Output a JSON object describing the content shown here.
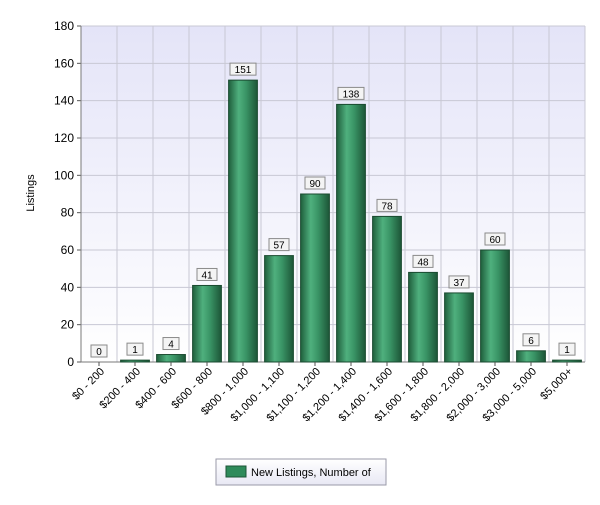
{
  "chart_data": {
    "type": "bar",
    "title": "",
    "xlabel": "",
    "ylabel": "Listings",
    "ylim": [
      0,
      180
    ],
    "yticks": [
      0,
      20,
      40,
      60,
      80,
      100,
      120,
      140,
      160,
      180
    ],
    "grid": true,
    "legend_position": "bottom-center",
    "categories": [
      "$0 - 200",
      "$200 - 400",
      "$400 - 600",
      "$600 - 800",
      "$800 - 1,000",
      "$1,000 - 1,100",
      "$1,100 - 1,200",
      "$1,200 - 1,400",
      "$1,400 - 1,600",
      "$1,600 - 1,800",
      "$1,800 - 2,000",
      "$2,000 - 3,000",
      "$3,000 - 5,000",
      "$5,000+"
    ],
    "series": [
      {
        "name": "New Listings, Number of",
        "color": "#2e8b5a",
        "values": [
          0,
          1,
          4,
          41,
          151,
          57,
          90,
          138,
          78,
          48,
          37,
          60,
          6,
          1
        ]
      }
    ]
  }
}
